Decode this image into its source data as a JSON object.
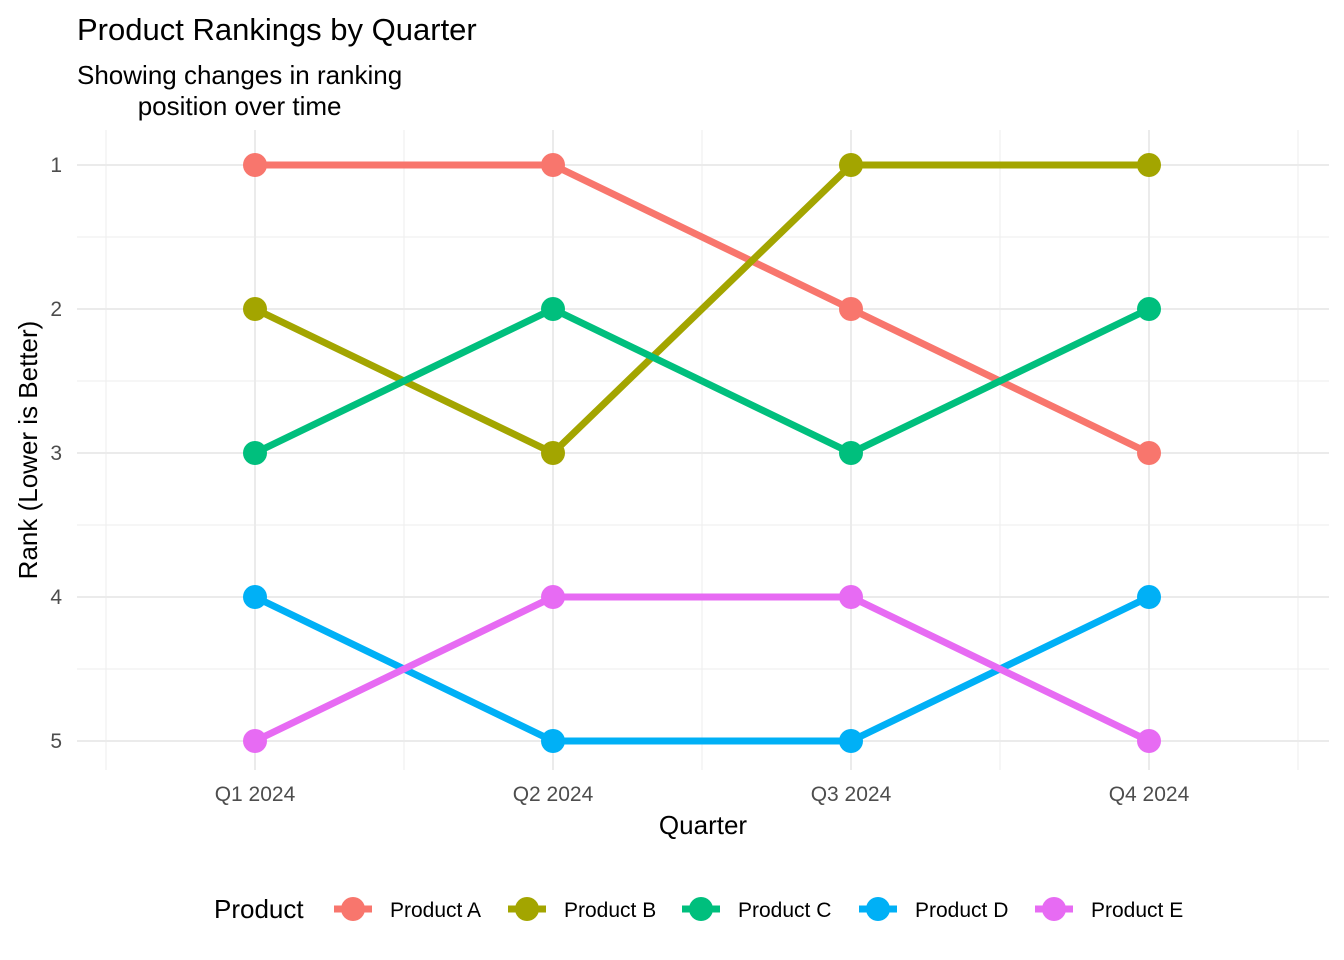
{
  "chart_data": {
    "type": "line",
    "title": "Product Rankings by Quarter",
    "subtitle_lines": [
      "Showing changes in ranking",
      "position over time"
    ],
    "xlabel": "Quarter",
    "ylabel": "Rank (Lower is Better)",
    "categories": [
      "Q1 2024",
      "Q2 2024",
      "Q3 2024",
      "Q4 2024"
    ],
    "y_ticks": [
      1,
      2,
      3,
      4,
      5
    ],
    "ylim": [
      1,
      5
    ],
    "y_reversed": true,
    "grid": true,
    "legend_title": "Product",
    "legend_position": "bottom",
    "series": [
      {
        "name": "Product A",
        "color": "#F8766D",
        "values": [
          1,
          1,
          2,
          3
        ]
      },
      {
        "name": "Product B",
        "color": "#A3A500",
        "values": [
          2,
          3,
          1,
          1
        ]
      },
      {
        "name": "Product C",
        "color": "#00BF7D",
        "values": [
          3,
          2,
          3,
          2
        ]
      },
      {
        "name": "Product D",
        "color": "#00B0F6",
        "values": [
          4,
          5,
          5,
          4
        ]
      },
      {
        "name": "Product E",
        "color": "#E76BF3",
        "values": [
          5,
          4,
          4,
          5
        ]
      }
    ]
  }
}
